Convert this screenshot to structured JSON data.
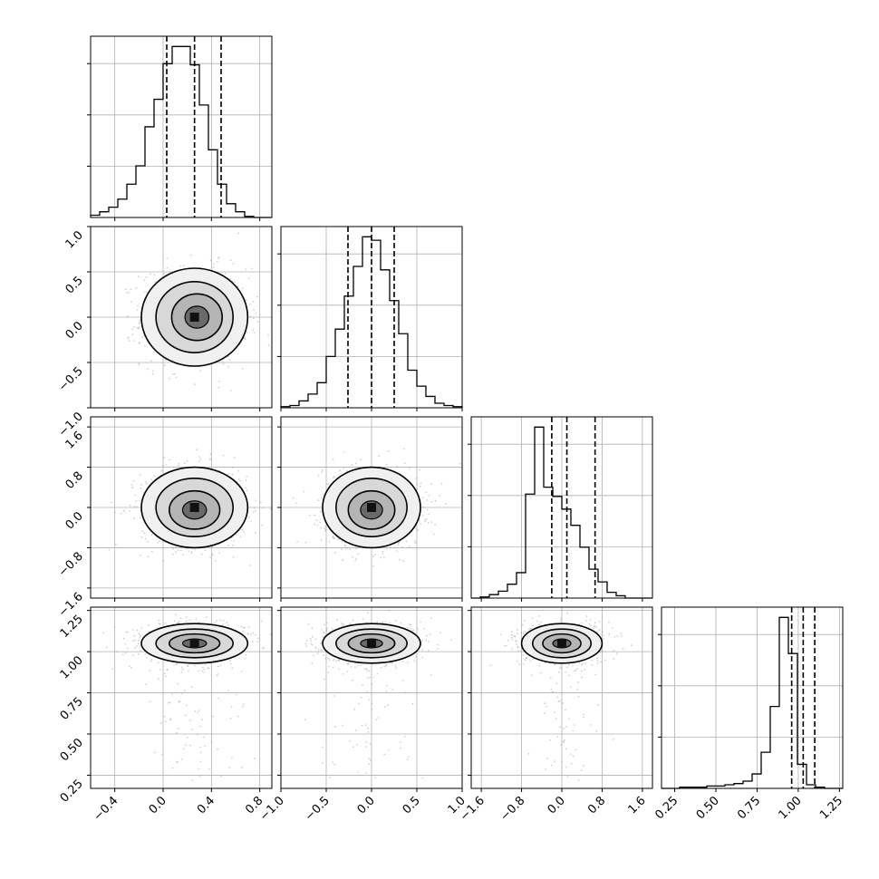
{
  "chart_data": {
    "type": "corner",
    "parameters": [
      "",
      "",
      "",
      ""
    ],
    "histograms": [
      {
        "range": [
          -0.6,
          0.9
        ],
        "edges_start": -0.6,
        "bin_width": 0.075,
        "counts": [
          2,
          5,
          9,
          16,
          29,
          45,
          79,
          103,
          134,
          149,
          149,
          133,
          98,
          59,
          29,
          12,
          5,
          1,
          0,
          0
        ],
        "quantiles": [
          0.03,
          0.26,
          0.48
        ]
      },
      {
        "range": [
          -1.0,
          1.0
        ],
        "edges_start": -1.0,
        "bin_width": 0.1,
        "counts": [
          1,
          2,
          6,
          12,
          22,
          45,
          69,
          98,
          124,
          150,
          147,
          121,
          94,
          65,
          33,
          19,
          10,
          4,
          2,
          1
        ],
        "quantiles": [
          -0.26,
          0.0,
          0.25
        ]
      },
      {
        "range": [
          -1.8,
          1.8
        ],
        "edges_start": -1.8,
        "bin_width": 0.18,
        "counts": [
          0,
          1,
          3,
          6,
          12,
          22,
          90,
          148,
          96,
          88,
          77,
          63,
          44,
          25,
          14,
          5,
          2,
          0,
          0,
          0
        ],
        "quantiles": [
          -0.2,
          0.1,
          0.66
        ]
      },
      {
        "range": [
          0.17,
          1.27
        ],
        "edges_start": 0.17,
        "bin_width": 0.055,
        "counts": [
          0,
          0,
          1,
          1,
          1,
          2,
          2,
          3,
          4,
          6,
          12,
          30,
          68,
          142,
          112,
          20,
          3,
          1,
          0,
          0
        ],
        "quantiles": [
          0.96,
          1.03,
          1.1
        ]
      }
    ],
    "pairs": [
      {
        "row": 1,
        "col": 0,
        "center": [
          0.26,
          0.0
        ],
        "spread": [
          0.22,
          0.27
        ],
        "peak_offset": [
          0.02,
          0.0
        ]
      },
      {
        "row": 2,
        "col": 0,
        "center": [
          0.26,
          0.0
        ],
        "spread": [
          0.22,
          0.4
        ],
        "peak_offset": [
          0.0,
          -0.05
        ]
      },
      {
        "row": 2,
        "col": 1,
        "center": [
          0.0,
          0.0
        ],
        "spread": [
          0.27,
          0.4
        ],
        "peak_offset": [
          0.0,
          -0.05
        ]
      },
      {
        "row": 3,
        "col": 0,
        "center": [
          0.26,
          1.05
        ],
        "spread": [
          0.22,
          0.06
        ],
        "peak_offset": [
          0.0,
          0.0
        ]
      },
      {
        "row": 3,
        "col": 1,
        "center": [
          0.0,
          1.05
        ],
        "spread": [
          0.27,
          0.06
        ],
        "peak_offset": [
          0.0,
          0.0
        ]
      },
      {
        "row": 3,
        "col": 2,
        "center": [
          0.0,
          1.05
        ],
        "spread": [
          0.4,
          0.06
        ],
        "peak_offset": [
          0.0,
          0.0
        ]
      }
    ],
    "x_ticks": [
      {
        "values": [
          -0.4,
          0.0,
          0.4,
          0.8
        ],
        "labels": [
          "−0.4",
          "0.0",
          "0.4",
          "0.8"
        ]
      },
      {
        "values": [
          -1.0,
          -0.5,
          0.0,
          0.5,
          1.0
        ],
        "labels": [
          "−1.0",
          "−0.5",
          "0.0",
          "0.5",
          "1.0"
        ]
      },
      {
        "values": [
          -1.6,
          -0.8,
          0.0,
          0.8,
          1.6
        ],
        "labels": [
          "−1.6",
          "−0.8",
          "0.0",
          "0.8",
          "1.6"
        ]
      },
      {
        "values": [
          0.25,
          0.5,
          0.75,
          1.0,
          1.25
        ],
        "labels": [
          "0.25",
          "0.50",
          "0.75",
          "1.00",
          "1.25"
        ]
      }
    ],
    "y_ticks": [
      null,
      {
        "values": [
          -1.0,
          -0.5,
          0.0,
          0.5,
          1.0
        ],
        "labels": [
          "−1.0",
          "−0.5",
          "0.0",
          "0.5",
          "1.0"
        ]
      },
      {
        "values": [
          -1.6,
          -0.8,
          0.0,
          0.8,
          1.6
        ],
        "labels": [
          "−1.6",
          "−0.8",
          "0.0",
          "0.8",
          "1.6"
        ]
      },
      {
        "values": [
          0.25,
          0.5,
          0.75,
          1.0,
          1.25
        ],
        "labels": [
          "0.25",
          "0.50",
          "0.75",
          "1.00",
          "1.25"
        ]
      }
    ],
    "grid": true,
    "colors": {
      "line": "#000000",
      "grid": "#b0b0b0",
      "scatter": "#9a9a9a"
    }
  }
}
